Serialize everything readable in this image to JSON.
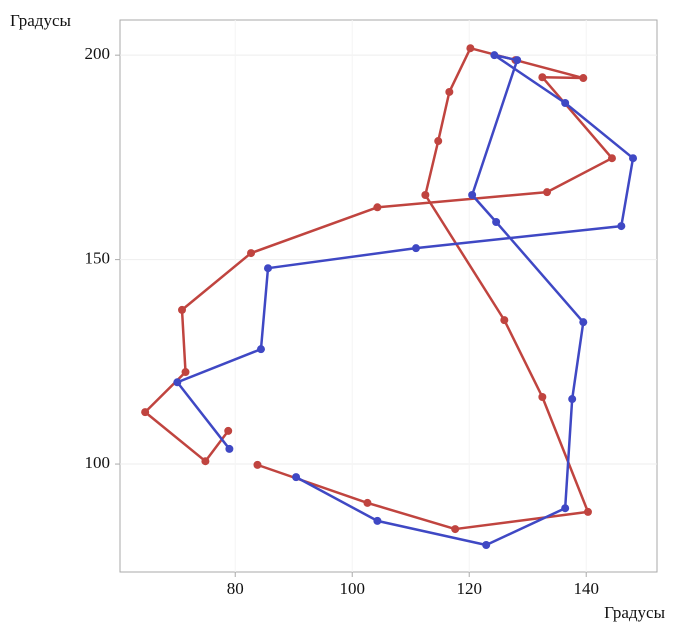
{
  "chart_data": {
    "type": "line",
    "x_label": "Градусы",
    "y_label": "Градусы",
    "xlim": [
      60.3,
      152.1
    ],
    "ylim": [
      73.6,
      208.6
    ],
    "xticks": [
      80,
      100,
      120,
      140
    ],
    "yticks": [
      100,
      150,
      200
    ],
    "grid": true,
    "series": [
      {
        "name": "Red",
        "color": "#c0443f",
        "x": [
          78.8,
          74.9,
          64.6,
          71.5,
          70.9,
          82.7,
          104.3,
          133.3,
          144.4,
          132.5,
          139.5,
          127.9,
          120.2,
          116.6,
          114.7,
          112.5,
          126.0,
          132.5,
          140.3,
          117.6,
          102.6,
          83.8
        ],
        "values": [
          108.1,
          100.7,
          112.7,
          122.5,
          137.7,
          151.6,
          162.8,
          166.5,
          174.8,
          194.6,
          194.4,
          198.8,
          201.7,
          191.0,
          179.0,
          165.8,
          135.2,
          116.4,
          88.3,
          84.1,
          90.5,
          99.8
        ]
      },
      {
        "name": "Blue",
        "color": "#3f48c4",
        "x": [
          79.0,
          70.1,
          84.4,
          85.6,
          110.9,
          146.0,
          148.0,
          136.4,
          124.3,
          128.2,
          120.5,
          124.6,
          139.5,
          137.6,
          136.4,
          122.9,
          104.3,
          90.4
        ],
        "values": [
          103.7,
          120.0,
          128.1,
          147.9,
          152.8,
          158.2,
          174.8,
          188.3,
          200.0,
          198.8,
          165.8,
          159.2,
          134.7,
          115.9,
          89.2,
          80.2,
          86.1,
          96.8
        ]
      }
    ]
  }
}
